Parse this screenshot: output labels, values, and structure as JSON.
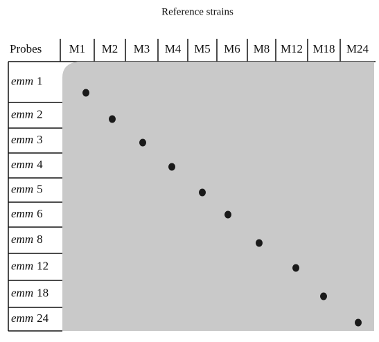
{
  "header": {
    "title": "Reference strains",
    "corner": "Probes"
  },
  "columns": [
    "M1",
    "M2",
    "M3",
    "M4",
    "M5",
    "M6",
    "M8",
    "M12",
    "M18",
    "M24"
  ],
  "rows": [
    {
      "gene": "emm",
      "number": "1"
    },
    {
      "gene": "emm",
      "number": "2"
    },
    {
      "gene": "emm",
      "number": "3"
    },
    {
      "gene": "emm",
      "number": "4"
    },
    {
      "gene": "emm",
      "number": "5"
    },
    {
      "gene": "emm",
      "number": "6"
    },
    {
      "gene": "emm",
      "number": "8"
    },
    {
      "gene": "emm",
      "number": "12"
    },
    {
      "gene": "emm",
      "number": "18"
    },
    {
      "gene": "emm",
      "number": "24"
    }
  ]
}
